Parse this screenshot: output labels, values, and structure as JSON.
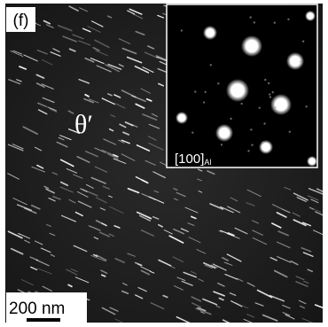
{
  "panel_label": "(f)",
  "phase_label": "θ′",
  "inset": {
    "zone_axis": "[100]",
    "zone_axis_subscript": "Al"
  },
  "scale_bar": {
    "label": "200 nm"
  }
}
